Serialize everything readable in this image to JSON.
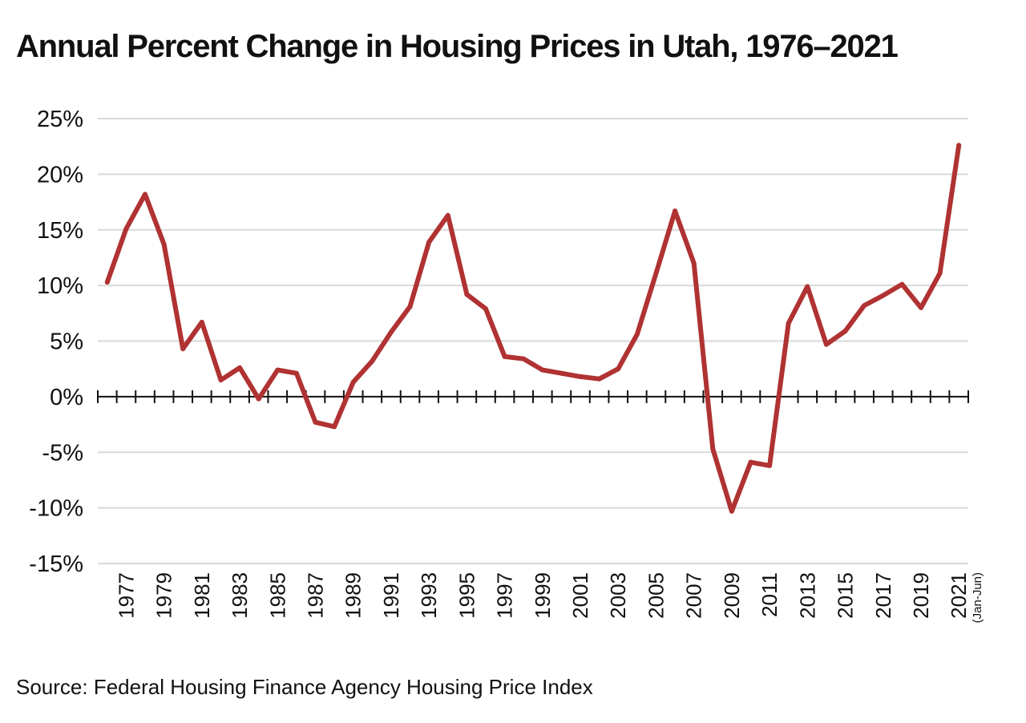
{
  "title": "Annual Percent Change in Housing Prices in Utah, 1976–2021",
  "source": "Source: Federal Housing Finance Agency Housing Price Index",
  "chart_data": {
    "type": "line",
    "title": "Annual Percent Change in Housing Prices in Utah, 1976–2021",
    "xlabel": "",
    "ylabel": "",
    "ylim": [
      -15,
      25
    ],
    "yticks": [
      25,
      20,
      15,
      10,
      5,
      0,
      -5,
      -10,
      -15
    ],
    "ytick_labels": [
      "25%",
      "20%",
      "15%",
      "10%",
      "5%",
      "0%",
      "-5%",
      "-10%",
      "-15%"
    ],
    "xlim": [
      1976,
      2021
    ],
    "xtick_labels": [
      "1977",
      "1979",
      "1981",
      "1983",
      "1985",
      "1987",
      "1989",
      "1991",
      "1993",
      "1995",
      "1997",
      "1999",
      "2001",
      "2003",
      "2005",
      "2007",
      "2009",
      "2011",
      "2013",
      "2015",
      "2017",
      "2019",
      "2021"
    ],
    "xtick_values": [
      1977,
      1979,
      1981,
      1983,
      1985,
      1987,
      1989,
      1991,
      1993,
      1995,
      1997,
      1999,
      2001,
      2003,
      2005,
      2007,
      2009,
      2011,
      2013,
      2015,
      2017,
      2019,
      2021
    ],
    "last_label_note": "(Jan-Jun)",
    "grid": true,
    "line_color": "#b03232",
    "grid_color": "#d9d9d9",
    "series": [
      {
        "x": [
          1976,
          1977,
          1978,
          1979,
          1980,
          1981,
          1982,
          1983,
          1984,
          1985,
          1986,
          1987,
          1988,
          1989,
          1990,
          1991,
          1992,
          1993,
          1994,
          1995,
          1996,
          1997,
          1998,
          1999,
          2000,
          2001,
          2002,
          2003,
          2004,
          2005,
          2006,
          2007,
          2008,
          2009,
          2010,
          2011,
          2012,
          2013,
          2014,
          2015,
          2016,
          2017,
          2018,
          2019,
          2020,
          2021
        ],
        "values": [
          10.3,
          15.1,
          18.2,
          13.7,
          4.3,
          6.7,
          1.5,
          2.6,
          -0.2,
          2.4,
          2.1,
          -2.3,
          -2.7,
          1.3,
          3.2,
          5.8,
          8.1,
          13.9,
          16.3,
          9.2,
          7.9,
          3.6,
          3.4,
          2.4,
          2.1,
          1.8,
          1.6,
          2.5,
          5.6,
          11.1,
          16.7,
          12.0,
          -4.7,
          -10.3,
          -5.9,
          -6.2,
          6.6,
          9.9,
          4.7,
          5.9,
          8.2,
          9.1,
          10.1,
          8.0,
          11.1,
          22.6
        ]
      }
    ]
  }
}
